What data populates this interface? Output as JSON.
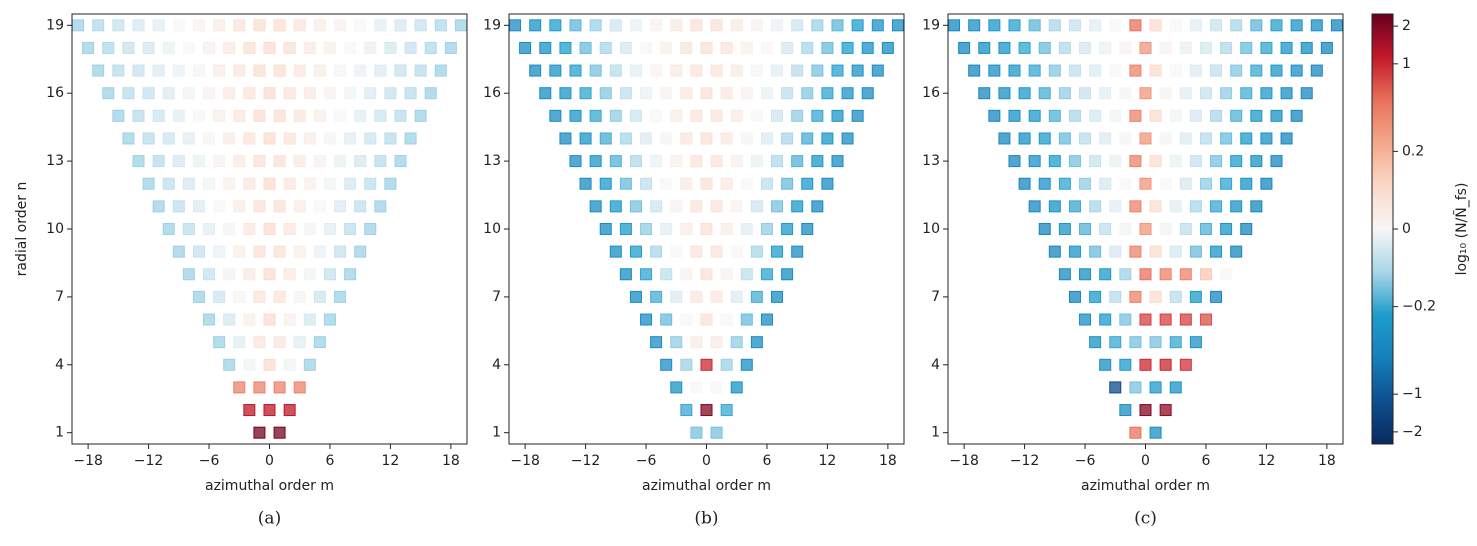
{
  "modes": {
    "n": [
      1,
      2,
      3,
      4,
      5,
      6,
      7,
      8,
      9,
      10,
      11,
      12,
      13,
      14,
      15,
      16,
      17,
      18,
      19
    ],
    "m": [
      [
        -1,
        1
      ],
      [
        -2,
        0,
        2
      ],
      [
        -3,
        -1,
        1,
        3
      ],
      [
        -4,
        -2,
        0,
        2,
        4
      ],
      [
        -5,
        -3,
        -1,
        1,
        3,
        5
      ],
      [
        -6,
        -4,
        -2,
        0,
        2,
        4,
        6
      ],
      [
        -7,
        -5,
        -3,
        -1,
        1,
        3,
        5,
        7
      ],
      [
        -8,
        -6,
        -4,
        -2,
        0,
        2,
        4,
        6,
        8
      ],
      [
        -9,
        -7,
        -5,
        -3,
        -1,
        1,
        3,
        5,
        7,
        9
      ],
      [
        -10,
        -8,
        -6,
        -4,
        -2,
        0,
        2,
        4,
        6,
        8,
        10
      ],
      [
        -11,
        -9,
        -7,
        -5,
        -3,
        -1,
        1,
        3,
        5,
        7,
        9,
        11
      ],
      [
        -12,
        -10,
        -8,
        -6,
        -4,
        -2,
        0,
        2,
        4,
        6,
        8,
        10,
        12
      ],
      [
        -13,
        -11,
        -9,
        -7,
        -5,
        -3,
        -1,
        1,
        3,
        5,
        7,
        9,
        11,
        13
      ],
      [
        -14,
        -12,
        -10,
        -8,
        -6,
        -4,
        -2,
        0,
        2,
        4,
        6,
        8,
        10,
        12,
        14
      ],
      [
        -15,
        -13,
        -11,
        -9,
        -7,
        -5,
        -3,
        -1,
        1,
        3,
        5,
        7,
        9,
        11,
        13,
        15
      ],
      [
        -16,
        -14,
        -12,
        -10,
        -8,
        -6,
        -4,
        -2,
        0,
        2,
        4,
        6,
        8,
        10,
        12,
        14,
        16
      ],
      [
        -17,
        -15,
        -13,
        -11,
        -9,
        -7,
        -5,
        -3,
        -1,
        1,
        3,
        5,
        7,
        9,
        11,
        13,
        15,
        17
      ],
      [
        -18,
        -16,
        -14,
        -12,
        -10,
        -8,
        -6,
        -4,
        -2,
        0,
        2,
        4,
        6,
        8,
        10,
        12,
        14,
        16,
        18
      ],
      [
        -19,
        -17,
        -15,
        -13,
        -11,
        -9,
        -7,
        -5,
        -3,
        -1,
        1,
        3,
        5,
        7,
        9,
        11,
        13,
        15,
        17,
        19
      ]
    ]
  },
  "chart_data": [
    {
      "type": "heatmap",
      "label": "(a)",
      "xlabel": "azimuthal order m",
      "ylabel": "radial order n",
      "xlim": [
        -19.6,
        19.6
      ],
      "ylim": [
        0.5,
        19.5
      ],
      "xticks": [
        {
          "value": -18,
          "label": "−18"
        },
        {
          "value": -12,
          "label": "−12"
        },
        {
          "value": -6,
          "label": "−6"
        },
        0,
        6,
        12,
        18
      ],
      "yticks": [
        1,
        4,
        7,
        10,
        13,
        16,
        19
      ],
      "values": [
        [
          2.2,
          2.2
        ],
        [
          1.2,
          1.2,
          1.2
        ],
        [
          0.4,
          0.4,
          0.4,
          0.4
        ],
        [
          -0.12,
          -0.01,
          0.1,
          -0.01,
          -0.12
        ],
        [
          -0.12,
          -0.03,
          0.06,
          0.06,
          -0.03,
          -0.12
        ],
        [
          -0.12,
          -0.05,
          0.03,
          0.1,
          0.03,
          -0.05,
          -0.12
        ],
        [
          -0.12,
          -0.06,
          0.01,
          0.07,
          0.07,
          0.01,
          -0.06,
          -0.12
        ],
        [
          -0.12,
          -0.07,
          -0.01,
          0.05,
          0.1,
          0.05,
          -0.01,
          -0.07,
          -0.12
        ],
        [
          -0.12,
          -0.07,
          -0.02,
          0.03,
          0.08,
          0.08,
          0.03,
          -0.02,
          -0.07,
          -0.12
        ],
        [
          -0.12,
          -0.08,
          -0.03,
          0.01,
          0.06,
          0.1,
          0.06,
          0.01,
          -0.03,
          -0.08,
          -0.12
        ],
        [
          -0.12,
          -0.08,
          -0.04,
          0,
          0.04,
          0.08,
          0.08,
          0.04,
          0,
          -0.04,
          -0.08,
          -0.12
        ],
        [
          -0.12,
          -0.08,
          -0.05,
          -0.01,
          0.03,
          0.06,
          0.1,
          0.06,
          0.03,
          -0.01,
          -0.05,
          -0.08,
          -0.12
        ],
        [
          -0.12,
          -0.09,
          -0.05,
          -0.02,
          0.02,
          0.05,
          0.08,
          0.08,
          0.05,
          0.02,
          -0.02,
          -0.05,
          -0.09,
          -0.12
        ],
        [
          -0.12,
          -0.09,
          -0.06,
          -0.03,
          0.01,
          0.04,
          0.07,
          0.1,
          0.07,
          0.04,
          0.01,
          -0.03,
          -0.06,
          -0.09,
          -0.12
        ],
        [
          -0.12,
          -0.09,
          -0.06,
          -0.03,
          0,
          0.03,
          0.06,
          0.09,
          0.09,
          0.06,
          0.03,
          0,
          -0.03,
          -0.06,
          -0.09,
          -0.12
        ],
        [
          -0.12,
          -0.09,
          -0.07,
          -0.04,
          -0.01,
          0.02,
          0.05,
          0.07,
          0.1,
          0.07,
          0.05,
          0.02,
          -0.01,
          -0.04,
          -0.07,
          -0.09,
          -0.12
        ],
        [
          -0.12,
          -0.09,
          -0.07,
          -0.04,
          -0.02,
          0.01,
          0.04,
          0.06,
          0.09,
          0.09,
          0.06,
          0.04,
          0.01,
          -0.02,
          -0.04,
          -0.07,
          -0.09,
          -0.12
        ],
        [
          -0.12,
          -0.1,
          -0.07,
          -0.05,
          -0.02,
          0,
          0.03,
          0.05,
          0.08,
          0.1,
          0.08,
          0.05,
          0.03,
          0,
          -0.02,
          -0.05,
          -0.07,
          -0.1,
          -0.12
        ],
        [
          -0.12,
          -0.1,
          -0.07,
          -0.05,
          -0.03,
          0,
          0.02,
          0.04,
          0.07,
          0.09,
          0.09,
          0.07,
          0.04,
          0.02,
          0,
          -0.03,
          -0.05,
          -0.07,
          -0.1,
          -0.12
        ]
      ]
    },
    {
      "type": "heatmap",
      "label": "(b)",
      "xlabel": "azimuthal order m",
      "xlim": [
        -19.6,
        19.6
      ],
      "ylim": [
        0.5,
        19.5
      ],
      "xticks": [
        {
          "value": -18,
          "label": "−18"
        },
        {
          "value": -12,
          "label": "−12"
        },
        {
          "value": -6,
          "label": "−6"
        },
        0,
        6,
        12,
        18
      ],
      "yticks": [
        1,
        4,
        7,
        10,
        13,
        16,
        19
      ],
      "values": [
        [
          -0.15,
          -0.15
        ],
        [
          -0.2,
          2.0,
          -0.2
        ],
        [
          -0.3,
          0,
          0,
          -0.3
        ],
        [
          -0.35,
          -0.12,
          1.0,
          -0.12,
          -0.35
        ],
        [
          -0.37,
          -0.13,
          0.04,
          0.04,
          -0.13,
          -0.37
        ],
        [
          -0.37,
          -0.16,
          0.0,
          0.08,
          0.0,
          -0.16,
          -0.37
        ],
        [
          -0.37,
          -0.19,
          -0.04,
          0.06,
          0.06,
          -0.04,
          -0.19,
          -0.37
        ],
        [
          -0.37,
          -0.21,
          -0.08,
          0.02,
          0.08,
          0.02,
          -0.08,
          -0.21,
          -0.37
        ],
        [
          -0.37,
          -0.23,
          -0.11,
          0.0,
          0.07,
          0.07,
          0.0,
          -0.11,
          -0.23,
          -0.37
        ],
        [
          -0.37,
          -0.24,
          -0.13,
          -0.03,
          0.04,
          0.08,
          0.04,
          -0.03,
          -0.13,
          -0.24,
          -0.37
        ],
        [
          -0.37,
          -0.25,
          -0.15,
          -0.06,
          0.02,
          0.07,
          0.07,
          0.02,
          -0.06,
          -0.15,
          -0.25,
          -0.37
        ],
        [
          -0.37,
          -0.26,
          -0.16,
          -0.08,
          0.0,
          0.05,
          0.08,
          0.05,
          0.0,
          -0.08,
          -0.16,
          -0.26,
          -0.37
        ],
        [
          -0.37,
          -0.27,
          -0.18,
          -0.1,
          -0.02,
          0.03,
          0.07,
          0.07,
          0.03,
          -0.02,
          -0.1,
          -0.18,
          -0.27,
          -0.37
        ],
        [
          -0.37,
          -0.28,
          -0.19,
          -0.11,
          -0.04,
          0.01,
          0.06,
          0.08,
          0.06,
          0.01,
          -0.04,
          -0.11,
          -0.19,
          -0.28,
          -0.37
        ],
        [
          -0.37,
          -0.28,
          -0.2,
          -0.13,
          -0.06,
          0.0,
          0.04,
          0.07,
          0.07,
          0.04,
          0.0,
          -0.06,
          -0.13,
          -0.2,
          -0.28,
          -0.37
        ],
        [
          -0.37,
          -0.29,
          -0.21,
          -0.14,
          -0.08,
          -0.02,
          0.02,
          0.06,
          0.08,
          0.06,
          0.02,
          -0.02,
          -0.08,
          -0.14,
          -0.21,
          -0.29,
          -0.37
        ],
        [
          -0.37,
          -0.29,
          -0.22,
          -0.15,
          -0.09,
          -0.03,
          0.01,
          0.05,
          0.07,
          0.07,
          0.05,
          0.01,
          -0.03,
          -0.09,
          -0.15,
          -0.22,
          -0.29,
          -0.37
        ],
        [
          -0.37,
          -0.3,
          -0.23,
          -0.16,
          -0.11,
          -0.05,
          0.0,
          0.03,
          0.07,
          0.08,
          0.07,
          0.03,
          0.0,
          -0.05,
          -0.11,
          -0.16,
          -0.23,
          -0.3,
          -0.37
        ],
        [
          -0.37,
          -0.3,
          -0.23,
          -0.17,
          -0.12,
          -0.06,
          -0.02,
          0.02,
          0.05,
          0.08,
          0.08,
          0.05,
          0.02,
          -0.02,
          -0.06,
          -0.12,
          -0.17,
          -0.23,
          -0.3,
          -0.37
        ]
      ]
    },
    {
      "type": "heatmap",
      "label": "(c)",
      "xlabel": "azimuthal order m",
      "xlim": [
        -19.6,
        19.6
      ],
      "ylim": [
        0.5,
        19.5
      ],
      "xticks": [
        {
          "value": -18,
          "label": "−18"
        },
        {
          "value": -12,
          "label": "−12"
        },
        {
          "value": -6,
          "label": "−6"
        },
        0,
        6,
        12,
        18
      ],
      "yticks": [
        1,
        4,
        7,
        10,
        13,
        16,
        19
      ],
      "values": [
        [
          0.5,
          -0.35
        ],
        [
          -0.35,
          2.0,
          1.8
        ],
        [
          -1.2,
          -0.15,
          -0.25,
          -0.3
        ],
        [
          -0.35,
          -0.25,
          1.0,
          1.0,
          0.9
        ],
        [
          -0.3,
          -0.2,
          -0.15,
          -0.15,
          -0.2,
          -0.3
        ],
        [
          -0.35,
          -0.25,
          -0.15,
          0.8,
          0.8,
          0.8,
          0.7
        ],
        [
          -0.42,
          -0.24,
          -0.09,
          0.4,
          0.1,
          -0.09,
          -0.24,
          -0.42
        ],
        [
          -0.4,
          -0.35,
          -0.25,
          -0.12,
          0.5,
          0.4,
          0.4,
          0.15,
          0.0
        ],
        [
          -0.42,
          -0.28,
          -0.16,
          -0.05,
          0.4,
          0.1,
          -0.05,
          -0.16,
          -0.28,
          -0.42
        ],
        [
          -0.42,
          -0.29,
          -0.18,
          -0.08,
          -0.01,
          0.3,
          -0.01,
          -0.08,
          -0.18,
          -0.29,
          -0.42
        ],
        [
          -0.42,
          -0.3,
          -0.2,
          -0.11,
          -0.03,
          0.4,
          0.1,
          -0.03,
          -0.11,
          -0.2,
          -0.3,
          -0.42
        ],
        [
          -0.42,
          -0.31,
          -0.21,
          -0.13,
          -0.05,
          0.0,
          0.3,
          0.0,
          -0.05,
          -0.13,
          -0.21,
          -0.31,
          -0.42
        ],
        [
          -0.42,
          -0.32,
          -0.23,
          -0.15,
          -0.07,
          -0.02,
          0.4,
          0.1,
          -0.02,
          -0.07,
          -0.15,
          -0.23,
          -0.32,
          -0.42
        ],
        [
          -0.42,
          -0.33,
          -0.24,
          -0.16,
          -0.09,
          -0.04,
          0.01,
          0.3,
          0.01,
          -0.04,
          -0.09,
          -0.16,
          -0.24,
          -0.33,
          -0.42
        ],
        [
          -0.42,
          -0.33,
          -0.25,
          -0.18,
          -0.11,
          -0.05,
          -0.01,
          0.4,
          0.1,
          -0.01,
          -0.05,
          -0.11,
          -0.18,
          -0.25,
          -0.33,
          -0.42
        ],
        [
          -0.42,
          -0.34,
          -0.26,
          -0.19,
          -0.13,
          -0.07,
          -0.03,
          0.01,
          0.3,
          0.01,
          -0.03,
          -0.07,
          -0.13,
          -0.19,
          -0.26,
          -0.34,
          -0.42
        ],
        [
          -0.42,
          -0.34,
          -0.27,
          -0.2,
          -0.14,
          -0.08,
          -0.04,
          0.0,
          0.4,
          0.1,
          0.0,
          -0.04,
          -0.08,
          -0.14,
          -0.2,
          -0.27,
          -0.34,
          -0.42
        ],
        [
          -0.42,
          -0.35,
          -0.28,
          -0.21,
          -0.16,
          -0.1,
          -0.05,
          -0.02,
          0.02,
          0.3,
          0.02,
          -0.02,
          -0.05,
          -0.1,
          -0.16,
          -0.21,
          -0.28,
          -0.35,
          -0.42
        ],
        [
          -0.42,
          -0.35,
          -0.28,
          -0.22,
          -0.17,
          -0.11,
          -0.07,
          -0.03,
          0.0,
          0.5,
          0.1,
          0.0,
          -0.03,
          -0.07,
          -0.11,
          -0.17,
          -0.22,
          -0.28,
          -0.35,
          -0.42
        ]
      ]
    }
  ],
  "colorbar": {
    "label": "log₁₀ (N/Ñ_fs)",
    "scale": "symlog",
    "clim": [
      -2.5,
      2.5
    ],
    "ticks": [
      2,
      1,
      0.2,
      0,
      {
        "value": -0.2,
        "label": "−0.2"
      },
      {
        "value": -1,
        "label": "−1"
      },
      {
        "value": -2,
        "label": "−2"
      }
    ],
    "colormap": [
      "#0a2a5e",
      "#0d4f8f",
      "#1680bb",
      "#1e9ccb",
      "#a9d6e8",
      "#f7f7f7",
      "#fbd9c8",
      "#f4a88c",
      "#e8705a",
      "#c4192b",
      "#67001f"
    ]
  }
}
